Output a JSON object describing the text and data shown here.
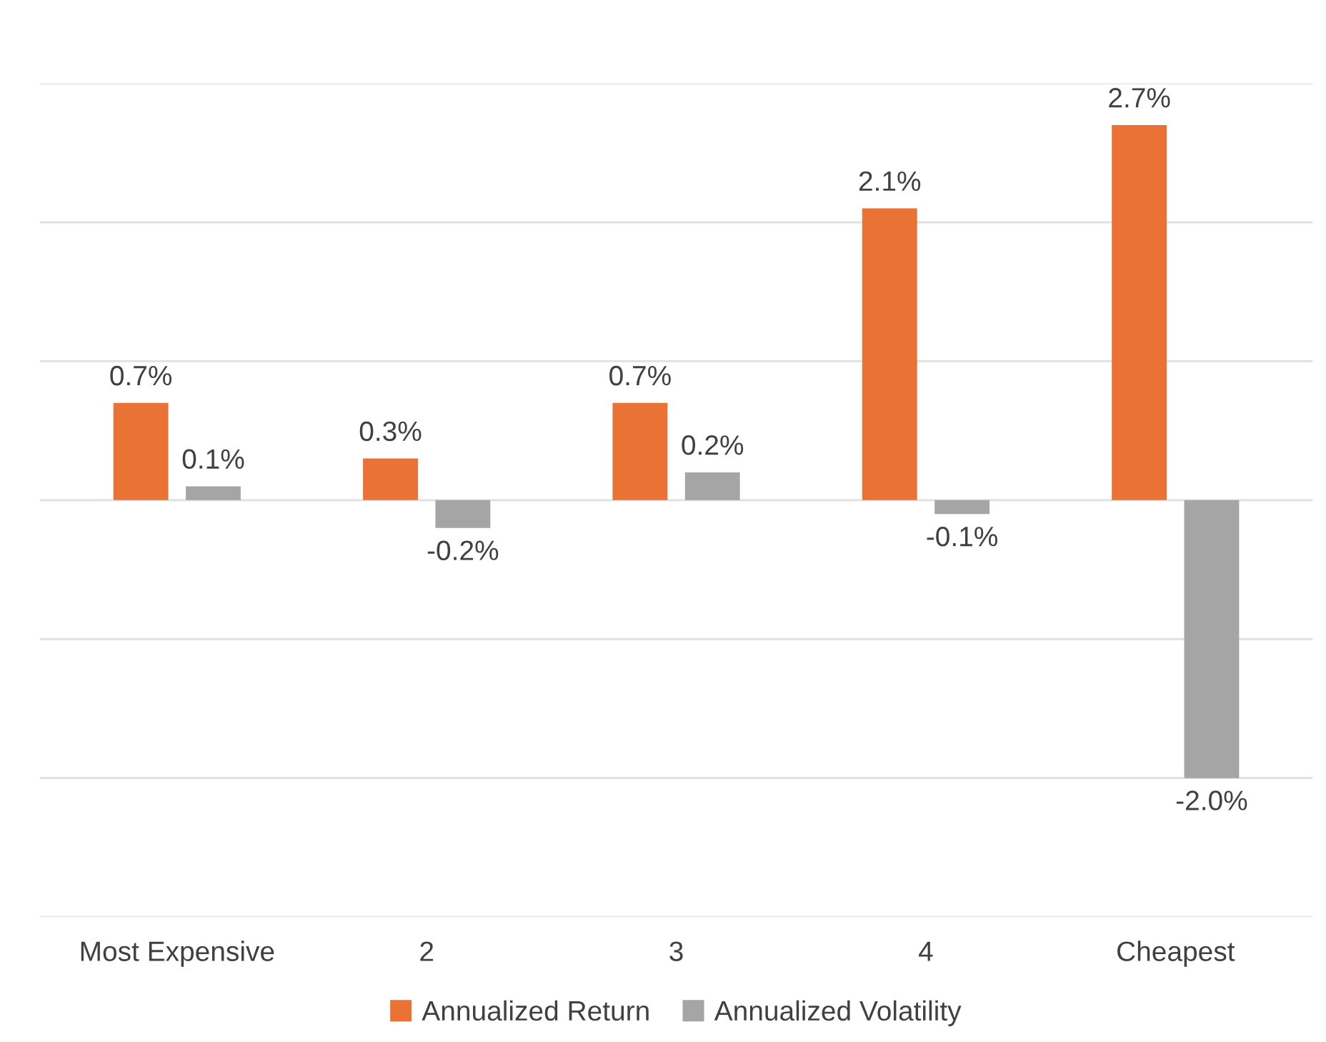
{
  "chart_data": {
    "type": "bar",
    "categories": [
      "Most Expensive",
      "2",
      "3",
      "4",
      "Cheapest"
    ],
    "series": [
      {
        "name": "Annualized Return",
        "color": "#eb7235",
        "values": [
          0.7,
          0.3,
          0.7,
          2.1,
          2.7
        ],
        "value_labels": [
          "0.7%",
          "0.3%",
          "0.7%",
          "2.1%",
          "2.7%"
        ]
      },
      {
        "name": "Annualized Volatility",
        "color": "#a5a5a5",
        "values": [
          0.1,
          -0.2,
          0.2,
          -0.1,
          -2.0
        ],
        "value_labels": [
          "0.1%",
          "-0.2%",
          "0.2%",
          "-0.1%",
          "-2.0%"
        ]
      }
    ],
    "ylim": [
      -3,
      3
    ],
    "yticks": [
      {
        "value": -3,
        "label": null
      },
      {
        "value": -2,
        "label": null
      },
      {
        "value": -1,
        "label": null
      },
      {
        "value": 0,
        "label": null
      },
      {
        "value": 1,
        "label": null
      },
      {
        "value": 2,
        "label": null
      },
      {
        "value": 3,
        "label": null
      }
    ],
    "tick_labels": "x",
    "grid": "y",
    "legend": "bottom"
  }
}
